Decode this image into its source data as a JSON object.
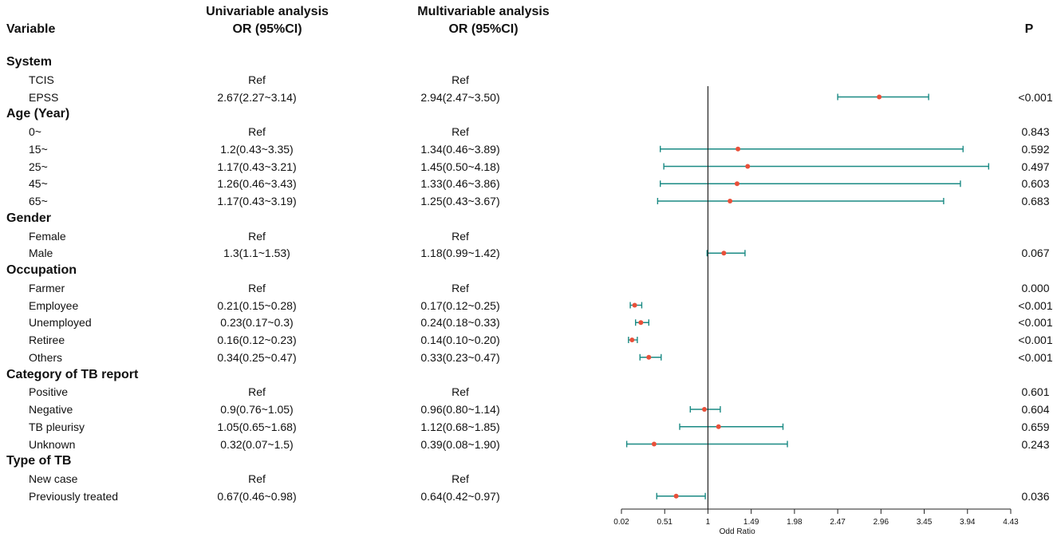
{
  "headers": {
    "variable": "Variable",
    "uni_title": "Univariable analysis",
    "uni_sub": "OR (95%CI)",
    "multi_title": "Multivariable analysis",
    "multi_sub": "OR (95%CI)",
    "p": "P"
  },
  "chart_data": {
    "type": "forest",
    "xlabel": "Odd Ratio",
    "xlim": [
      0.02,
      4.43
    ],
    "ticks": [
      "0.02",
      "0.51",
      "1",
      "1.49",
      "1.98",
      "2.47",
      "2.96",
      "3.45",
      "3.94",
      "4.43"
    ],
    "reference_line": 1,
    "colors": {
      "ci": "#1a8a84",
      "point": "#e8503a",
      "axis": "#222222"
    },
    "rows": [
      {
        "label": "System",
        "group": true
      },
      {
        "label": "TCIS",
        "uni": "Ref",
        "multi": "Ref",
        "p": ""
      },
      {
        "label": "EPSS",
        "uni": "2.67(2.27~3.14)",
        "multi": "2.94(2.47~3.50)",
        "p": "<0.001",
        "or": 2.94,
        "lo": 2.47,
        "hi": 3.5
      },
      {
        "label": "Age (Year)",
        "group": true
      },
      {
        "label": "0~",
        "uni": "Ref",
        "multi": "Ref",
        "p": "0.843"
      },
      {
        "label": "15~",
        "uni": "1.2(0.43~3.35)",
        "multi": "1.34(0.46~3.89)",
        "p": "0.592",
        "or": 1.34,
        "lo": 0.46,
        "hi": 3.89
      },
      {
        "label": "25~",
        "uni": "1.17(0.43~3.21)",
        "multi": "1.45(0.50~4.18)",
        "p": "0.497",
        "or": 1.45,
        "lo": 0.5,
        "hi": 4.18
      },
      {
        "label": "45~",
        "uni": "1.26(0.46~3.43)",
        "multi": "1.33(0.46~3.86)",
        "p": "0.603",
        "or": 1.33,
        "lo": 0.46,
        "hi": 3.86
      },
      {
        "label": "65~",
        "uni": "1.17(0.43~3.19)",
        "multi": "1.25(0.43~3.67)",
        "p": "0.683",
        "or": 1.25,
        "lo": 0.43,
        "hi": 3.67
      },
      {
        "label": "Gender",
        "group": true
      },
      {
        "label": "Female",
        "uni": "Ref",
        "multi": "Ref",
        "p": ""
      },
      {
        "label": "Male",
        "uni": "1.3(1.1~1.53)",
        "multi": "1.18(0.99~1.42)",
        "p": "0.067",
        "or": 1.18,
        "lo": 0.99,
        "hi": 1.42
      },
      {
        "label": "Occupation",
        "group": true
      },
      {
        "label": "Farmer",
        "uni": "Ref",
        "multi": "Ref",
        "p": "0.000"
      },
      {
        "label": "Employee",
        "uni": "0.21(0.15~0.28)",
        "multi": "0.17(0.12~0.25)",
        "p": "<0.001",
        "or": 0.17,
        "lo": 0.12,
        "hi": 0.25
      },
      {
        "label": "Unemployed",
        "uni": "0.23(0.17~0.3)",
        "multi": "0.24(0.18~0.33)",
        "p": "<0.001",
        "or": 0.24,
        "lo": 0.18,
        "hi": 0.33
      },
      {
        "label": "Retiree",
        "uni": "0.16(0.12~0.23)",
        "multi": "0.14(0.10~0.20)",
        "p": "<0.001",
        "or": 0.14,
        "lo": 0.1,
        "hi": 0.2
      },
      {
        "label": "Others",
        "uni": "0.34(0.25~0.47)",
        "multi": "0.33(0.23~0.47)",
        "p": "<0.001",
        "or": 0.33,
        "lo": 0.23,
        "hi": 0.47
      },
      {
        "label": "Category of TB report",
        "group": true
      },
      {
        "label": "Positive",
        "uni": "Ref",
        "multi": "Ref",
        "p": "0.601"
      },
      {
        "label": "Negative",
        "uni": "0.9(0.76~1.05)",
        "multi": "0.96(0.80~1.14)",
        "p": "0.604",
        "or": 0.96,
        "lo": 0.8,
        "hi": 1.14
      },
      {
        "label": "TB pleurisy",
        "uni": "1.05(0.65~1.68)",
        "multi": "1.12(0.68~1.85)",
        "p": "0.659",
        "or": 1.12,
        "lo": 0.68,
        "hi": 1.85
      },
      {
        "label": "Unknown",
        "uni": "0.32(0.07~1.5)",
        "multi": "0.39(0.08~1.90)",
        "p": "0.243",
        "or": 0.39,
        "lo": 0.08,
        "hi": 1.9
      },
      {
        "label": "Type of TB",
        "group": true
      },
      {
        "label": "New case",
        "uni": "Ref",
        "multi": "Ref",
        "p": ""
      },
      {
        "label": "Previously treated",
        "uni": "0.67(0.46~0.98)",
        "multi": "0.64(0.42~0.97)",
        "p": "0.036",
        "or": 0.64,
        "lo": 0.42,
        "hi": 0.97
      }
    ]
  }
}
